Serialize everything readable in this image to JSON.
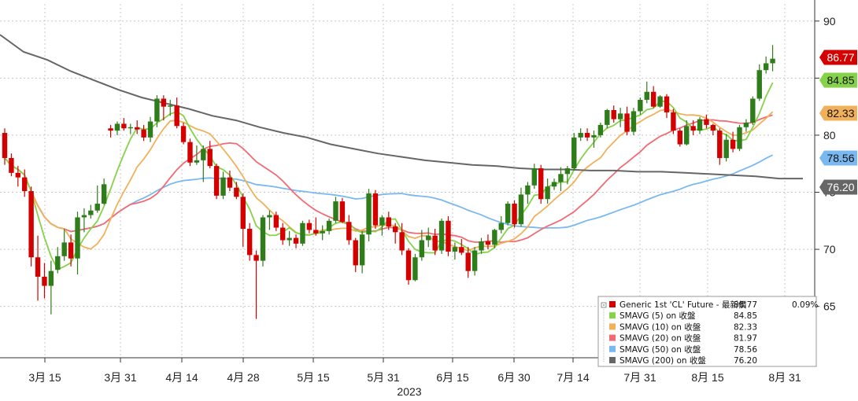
{
  "chart_data": {
    "type": "candlestick",
    "year_label": "2023",
    "x_tick_labels": [
      "3月 15",
      "3月 31",
      "4月 14",
      "4月 28",
      "5月 15",
      "5月 31",
      "6月 15",
      "6月 30",
      "7月 14",
      "7月 31",
      "8月 15",
      "8月 31"
    ],
    "y_ticks": [
      65,
      70,
      75,
      80,
      85,
      90
    ],
    "ylim": [
      60.5,
      91.5
    ],
    "grid": true,
    "colors": {
      "up": "#2e7d1a",
      "down": "#d40000",
      "sma5": "#86d24a",
      "sma10": "#f0b15a",
      "sma20": "#f26b74",
      "sma50": "#7ab8f0",
      "sma200": "#666666"
    },
    "candles": [
      [
        80.2,
        80.6,
        77.4,
        78.0
      ],
      [
        78.0,
        78.4,
        76.4,
        76.7
      ],
      [
        76.7,
        77.3,
        75.5,
        76.3
      ],
      [
        76.3,
        77.0,
        74.6,
        75.1
      ],
      [
        75.1,
        75.5,
        68.5,
        69.3
      ],
      [
        69.3,
        71.2,
        65.5,
        67.6
      ],
      [
        67.6,
        68.8,
        65.7,
        66.8
      ],
      [
        66.8,
        69.0,
        64.3,
        68.1
      ],
      [
        68.2,
        70.2,
        67.9,
        69.4
      ],
      [
        69.4,
        71.8,
        69.0,
        70.6
      ],
      [
        70.6,
        71.3,
        68.5,
        69.2
      ],
      [
        69.2,
        73.3,
        67.8,
        72.8
      ],
      [
        72.8,
        73.6,
        71.5,
        73.0
      ],
      [
        73.0,
        73.9,
        72.7,
        73.4
      ],
      [
        73.4,
        75.6,
        73.2,
        74.0
      ],
      [
        74.0,
        76.2,
        73.9,
        75.7
      ],
      [
        80.6,
        80.9,
        79.8,
        80.4
      ],
      [
        80.4,
        81.2,
        80.0,
        81.0
      ],
      [
        81.0,
        81.5,
        80.4,
        80.6
      ],
      [
        80.6,
        81.0,
        80.1,
        80.7
      ],
      [
        80.7,
        81.3,
        80.1,
        80.5
      ],
      [
        80.5,
        80.9,
        79.5,
        79.8
      ],
      [
        79.8,
        81.6,
        79.4,
        81.2
      ],
      [
        81.2,
        83.5,
        80.7,
        83.2
      ],
      [
        83.2,
        83.5,
        81.3,
        82.5
      ],
      [
        82.5,
        83.1,
        81.7,
        82.6
      ],
      [
        82.6,
        83.3,
        80.6,
        80.8
      ],
      [
        80.8,
        81.1,
        79.2,
        79.4
      ],
      [
        79.4,
        79.7,
        77.3,
        77.6
      ],
      [
        77.6,
        79.1,
        77.4,
        77.8
      ],
      [
        77.8,
        79.1,
        75.9,
        78.8
      ],
      [
        78.8,
        79.5,
        77.1,
        77.3
      ],
      [
        77.3,
        77.5,
        74.4,
        74.7
      ],
      [
        74.7,
        76.8,
        74.4,
        76.3
      ],
      [
        76.3,
        76.9,
        75.1,
        75.4
      ],
      [
        75.4,
        75.9,
        74.4,
        74.6
      ],
      [
        74.6,
        74.9,
        70.2,
        71.8
      ],
      [
        71.8,
        72.3,
        69.0,
        69.5
      ],
      [
        69.5,
        69.9,
        63.9,
        69.0
      ],
      [
        69.0,
        73.0,
        68.5,
        72.8
      ],
      [
        72.8,
        73.4,
        71.7,
        73.0
      ],
      [
        73.0,
        73.3,
        71.6,
        71.9
      ],
      [
        71.9,
        72.3,
        70.4,
        70.8
      ],
      [
        70.8,
        71.6,
        70.3,
        71.0
      ],
      [
        71.0,
        71.3,
        70.1,
        70.5
      ],
      [
        70.5,
        72.5,
        70.3,
        72.3
      ],
      [
        72.3,
        72.6,
        71.4,
        71.7
      ],
      [
        71.7,
        72.8,
        71.2,
        71.4
      ],
      [
        71.4,
        72.1,
        70.8,
        71.6
      ],
      [
        71.6,
        72.7,
        71.3,
        72.5
      ],
      [
        72.5,
        74.6,
        72.3,
        74.2
      ],
      [
        74.2,
        74.5,
        72.3,
        72.4
      ],
      [
        72.4,
        73.0,
        70.4,
        70.8
      ],
      [
        70.8,
        71.0,
        68.0,
        68.6
      ],
      [
        68.6,
        71.6,
        67.9,
        71.3
      ],
      [
        71.3,
        75.3,
        70.7,
        74.9
      ],
      [
        74.9,
        75.2,
        71.8,
        72.1
      ],
      [
        72.1,
        73.0,
        71.2,
        72.8
      ],
      [
        72.8,
        73.3,
        71.7,
        72.0
      ],
      [
        72.0,
        72.3,
        70.5,
        71.5
      ],
      [
        71.5,
        72.3,
        69.5,
        69.9
      ],
      [
        69.9,
        70.1,
        66.9,
        67.3
      ],
      [
        67.3,
        69.6,
        67.2,
        69.3
      ],
      [
        69.3,
        71.7,
        69.0,
        70.8
      ],
      [
        70.8,
        71.9,
        70.2,
        71.2
      ],
      [
        71.2,
        71.8,
        69.5,
        69.9
      ],
      [
        69.9,
        72.7,
        69.6,
        72.5
      ],
      [
        72.5,
        72.9,
        69.4,
        69.8
      ],
      [
        69.8,
        70.6,
        69.1,
        70.2
      ],
      [
        70.2,
        70.9,
        69.5,
        69.7
      ],
      [
        69.7,
        70.2,
        67.5,
        68.1
      ],
      [
        68.1,
        70.2,
        67.7,
        69.9
      ],
      [
        69.9,
        71.0,
        69.6,
        70.7
      ],
      [
        70.7,
        71.3,
        70.0,
        70.4
      ],
      [
        70.4,
        71.8,
        70.1,
        71.7
      ],
      [
        71.7,
        72.9,
        71.4,
        72.3
      ],
      [
        72.3,
        74.2,
        72.1,
        74.0
      ],
      [
        74.0,
        74.3,
        71.9,
        72.2
      ],
      [
        72.2,
        75.4,
        72.0,
        74.8
      ],
      [
        74.8,
        75.9,
        74.0,
        75.6
      ],
      [
        75.6,
        77.5,
        75.3,
        77.1
      ],
      [
        77.1,
        77.4,
        74.0,
        74.4
      ],
      [
        74.4,
        76.2,
        74.0,
        75.5
      ],
      [
        75.5,
        76.2,
        75.2,
        75.9
      ],
      [
        75.9,
        77.2,
        75.1,
        76.6
      ],
      [
        76.6,
        77.3,
        75.7,
        77.1
      ],
      [
        77.1,
        80.2,
        76.9,
        79.8
      ],
      [
        79.8,
        80.6,
        79.5,
        80.2
      ],
      [
        80.2,
        80.6,
        79.5,
        79.8
      ],
      [
        79.8,
        80.4,
        78.9,
        80.0
      ],
      [
        80.0,
        81.1,
        79.8,
        80.9
      ],
      [
        80.9,
        82.3,
        80.6,
        82.2
      ],
      [
        82.2,
        82.6,
        81.1,
        81.4
      ],
      [
        81.4,
        82.4,
        80.7,
        81.9
      ],
      [
        81.9,
        82.5,
        80.0,
        80.3
      ],
      [
        80.3,
        82.4,
        80.0,
        82.1
      ],
      [
        82.1,
        83.3,
        81.8,
        83.1
      ],
      [
        83.1,
        84.7,
        82.8,
        83.8
      ],
      [
        83.8,
        84.3,
        82.4,
        82.5
      ],
      [
        82.5,
        83.5,
        82.4,
        83.4
      ],
      [
        83.4,
        83.6,
        81.5,
        82.0
      ],
      [
        82.0,
        82.3,
        80.1,
        80.4
      ],
      [
        80.4,
        80.6,
        79.0,
        79.2
      ],
      [
        79.2,
        81.3,
        79.1,
        80.8
      ],
      [
        80.8,
        81.3,
        80.0,
        80.4
      ],
      [
        80.4,
        81.6,
        80.1,
        81.4
      ],
      [
        81.4,
        81.8,
        80.6,
        80.9
      ],
      [
        80.9,
        81.0,
        80.0,
        80.4
      ],
      [
        80.4,
        80.6,
        77.4,
        78.0
      ],
      [
        78.0,
        80.1,
        77.7,
        79.6
      ],
      [
        79.6,
        80.3,
        78.5,
        78.8
      ],
      [
        78.8,
        80.9,
        78.6,
        80.7
      ],
      [
        80.7,
        81.4,
        80.3,
        81.1
      ],
      [
        81.1,
        83.4,
        80.9,
        83.2
      ],
      [
        83.2,
        86.2,
        83.0,
        85.7
      ],
      [
        85.7,
        86.9,
        85.4,
        86.3
      ],
      [
        86.3,
        87.9,
        85.6,
        86.7
      ]
    ],
    "legend": {
      "series": "Generic 1st 'CL' Future - 最新價",
      "price": "86.77",
      "change": "0.09%",
      "rows": [
        {
          "key": "sma5",
          "label": "SMAVG (5)  on 收盤",
          "value": "84.85"
        },
        {
          "key": "sma10",
          "label": "SMAVG (10)  on 收盤",
          "value": "82.33"
        },
        {
          "key": "sma20",
          "label": "SMAVG (20)  on 收盤",
          "value": "81.97"
        },
        {
          "key": "sma50",
          "label": "SMAVG (50)  on 收盤",
          "value": "78.56"
        },
        {
          "key": "sma200",
          "label": "SMAVG (200)  on 收盤",
          "value": "76.20"
        }
      ]
    },
    "badges": [
      {
        "value": "86.77",
        "bg": "#d40000",
        "fg": "#ffffff"
      },
      {
        "value": "84.85",
        "bg": "#86d24a",
        "fg": "#111111"
      },
      {
        "value": "82.33",
        "bg": "#f0b15a",
        "fg": "#111111"
      },
      {
        "value": "78.56",
        "bg": "#7ab8f0",
        "fg": "#111111"
      },
      {
        "value": "76.20",
        "bg": "#666666",
        "fg": "#ffffff"
      }
    ],
    "sma200": [
      [
        0,
        88.8
      ],
      [
        30,
        87.3
      ],
      [
        60,
        86.6
      ],
      [
        90,
        85.6
      ],
      [
        120,
        84.8
      ],
      [
        150,
        84.0
      ],
      [
        180,
        83.3
      ],
      [
        210,
        82.8
      ],
      [
        240,
        82.3
      ],
      [
        270,
        81.7
      ],
      [
        300,
        81.3
      ],
      [
        330,
        80.7
      ],
      [
        360,
        80.2
      ],
      [
        390,
        79.8
      ],
      [
        420,
        79.2
      ],
      [
        450,
        78.8
      ],
      [
        480,
        78.4
      ],
      [
        510,
        78.1
      ],
      [
        540,
        77.8
      ],
      [
        570,
        77.6
      ],
      [
        600,
        77.4
      ],
      [
        630,
        77.3
      ],
      [
        660,
        77.1
      ],
      [
        690,
        77.0
      ],
      [
        720,
        77.0
      ],
      [
        750,
        76.9
      ],
      [
        780,
        76.9
      ],
      [
        810,
        76.8
      ],
      [
        840,
        76.8
      ],
      [
        870,
        76.7
      ],
      [
        900,
        76.6
      ],
      [
        930,
        76.5
      ],
      [
        960,
        76.4
      ],
      [
        990,
        76.2
      ],
      [
        1020,
        76.2
      ]
    ]
  }
}
